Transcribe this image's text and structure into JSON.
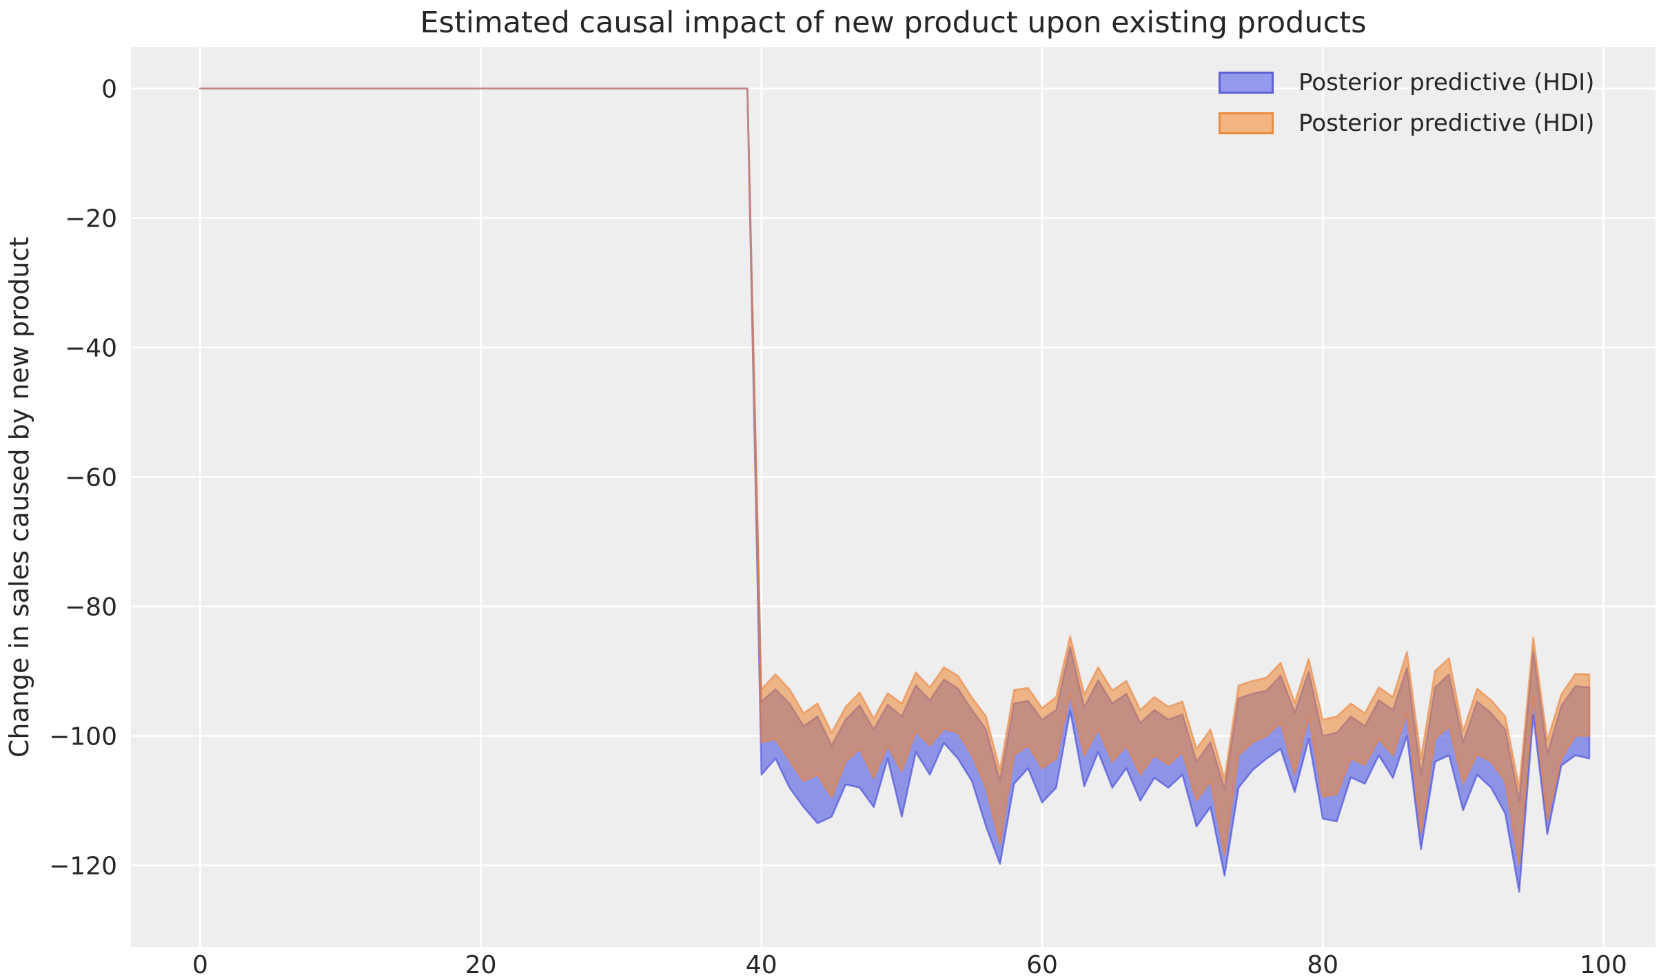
{
  "title": "Estimated causal impact of new product upon existing products",
  "ylabel": "Change in sales caused by new product",
  "xlabel": "",
  "legend": {
    "position": "upper right",
    "items": [
      {
        "label": "Posterior predictive (HDI)",
        "fill": "#959bec",
        "edge": "#5c61d8"
      },
      {
        "label": "Posterior predictive (HDI)",
        "fill": "#f4b583",
        "edge": "#e88d40"
      }
    ]
  },
  "colors": {
    "figure_background": "#ffffff",
    "axes_background": "#eeeeee",
    "grid": "#ffffff",
    "text": "#262626",
    "pre_period_line": "#c0817e"
  },
  "chart_data": {
    "type": "area",
    "title": "Estimated causal impact of new product upon existing products",
    "xlabel": "",
    "ylabel": "Change in sales caused by new product",
    "xticks": [
      0,
      20,
      40,
      60,
      80,
      100
    ],
    "yticks": [
      0,
      -20,
      -40,
      -60,
      -80,
      -100,
      -120
    ],
    "xlim": [
      -4.95,
      103.7
    ],
    "ylim": [
      6.4,
      -132.6
    ],
    "grid": true,
    "legend_position": "upper right",
    "pre_period": {
      "x_start": 0,
      "x_end": 39,
      "value": 0
    },
    "change_point_x": 40,
    "x": [
      0,
      1,
      2,
      3,
      4,
      5,
      6,
      7,
      8,
      9,
      10,
      11,
      12,
      13,
      14,
      15,
      16,
      17,
      18,
      19,
      20,
      21,
      22,
      23,
      24,
      25,
      26,
      27,
      28,
      29,
      30,
      31,
      32,
      33,
      34,
      35,
      36,
      37,
      38,
      39,
      40,
      41,
      42,
      43,
      44,
      45,
      46,
      47,
      48,
      49,
      50,
      51,
      52,
      53,
      54,
      55,
      56,
      57,
      58,
      59,
      60,
      61,
      62,
      63,
      64,
      65,
      66,
      67,
      68,
      69,
      70,
      71,
      72,
      73,
      74,
      75,
      76,
      77,
      78,
      79,
      80,
      81,
      82,
      83,
      84,
      85,
      86,
      87,
      88,
      89,
      90,
      91,
      92,
      93,
      94,
      95,
      96,
      97,
      98,
      99
    ],
    "series": [
      {
        "name": "Posterior predictive (HDI)",
        "band": "blue",
        "fill_rgba": "rgba(72,82,222,0.58)",
        "edge_rgba": "rgba(60,65,215,0.6)",
        "upper": [
          0,
          0,
          0,
          0,
          0,
          0,
          0,
          0,
          0,
          0,
          0,
          0,
          0,
          0,
          0,
          0,
          0,
          0,
          0,
          0,
          0,
          0,
          0,
          0,
          0,
          0,
          0,
          0,
          0,
          0,
          0,
          0,
          0,
          0,
          0,
          0,
          0,
          0,
          0,
          0,
          -94.7,
          -92.8,
          -95.0,
          -98.5,
          -97.0,
          -101.5,
          -97.5,
          -95.3,
          -99.0,
          -95.2,
          -97.0,
          -92.2,
          -94.5,
          -91.3,
          -92.7,
          -96.0,
          -99.0,
          -107.0,
          -95.0,
          -94.6,
          -97.5,
          -96.0,
          -86.2,
          -95.6,
          -91.4,
          -95.0,
          -93.5,
          -98.0,
          -96.0,
          -97.5,
          -96.7,
          -104.0,
          -101.0,
          -108.2,
          -94.2,
          -93.5,
          -93.0,
          -90.7,
          -96.4,
          -90.1,
          -100.0,
          -99.5,
          -97.0,
          -98.5,
          -94.5,
          -96.0,
          -89.5,
          -106.0,
          -92.5,
          -90.5,
          -101.0,
          -94.7,
          -96.5,
          -99.0,
          -110.0,
          -86.9,
          -102.8,
          -95.4,
          -92.3,
          -92.5
        ],
        "lower": [
          0,
          0,
          0,
          0,
          0,
          0,
          0,
          0,
          0,
          0,
          0,
          0,
          0,
          0,
          0,
          0,
          0,
          0,
          0,
          0,
          0,
          0,
          0,
          0,
          0,
          0,
          0,
          0,
          0,
          0,
          0,
          0,
          0,
          0,
          0,
          0,
          0,
          0,
          0,
          0,
          -106.0,
          -103.5,
          -108.0,
          -111.0,
          -113.5,
          -112.5,
          -107.5,
          -108.0,
          -111.0,
          -103.5,
          -112.5,
          -102.5,
          -106.0,
          -101.1,
          -103.5,
          -107.0,
          -114.0,
          -119.8,
          -107.4,
          -105.0,
          -110.3,
          -108.0,
          -96.1,
          -107.8,
          -102.5,
          -108.0,
          -105.0,
          -110.0,
          -106.5,
          -108.0,
          -106.0,
          -114.0,
          -111.0,
          -121.6,
          -108.0,
          -105.3,
          -103.5,
          -102.0,
          -108.7,
          -100.5,
          -112.8,
          -113.2,
          -106.4,
          -107.4,
          -103.0,
          -106.5,
          -100.0,
          -117.5,
          -104.0,
          -103.0,
          -111.5,
          -106.0,
          -108.0,
          -112.0,
          -124.1,
          -96.8,
          -115.2,
          -104.6,
          -103.0,
          -103.5
        ]
      },
      {
        "name": "Posterior predictive (HDI)",
        "band": "orange",
        "fill_rgba": "rgba(236,138,58,0.58)",
        "edge_rgba": "rgba(233,130,60,0.6)",
        "upper": [
          0,
          0,
          0,
          0,
          0,
          0,
          0,
          0,
          0,
          0,
          0,
          0,
          0,
          0,
          0,
          0,
          0,
          0,
          0,
          0,
          0,
          0,
          0,
          0,
          0,
          0,
          0,
          0,
          0,
          0,
          0,
          0,
          0,
          0,
          0,
          0,
          0,
          0,
          0,
          0,
          -92.8,
          -90.5,
          -92.8,
          -96.5,
          -95.0,
          -99.5,
          -95.5,
          -93.3,
          -97.3,
          -93.4,
          -95.0,
          -90.2,
          -92.5,
          -89.4,
          -90.7,
          -94.1,
          -97.0,
          -105.3,
          -92.9,
          -92.6,
          -95.7,
          -94.0,
          -84.6,
          -93.6,
          -89.4,
          -93.0,
          -91.5,
          -96.0,
          -94.0,
          -95.5,
          -94.7,
          -102.0,
          -99.0,
          -106.6,
          -92.2,
          -91.5,
          -91.0,
          -88.7,
          -94.9,
          -88.1,
          -97.5,
          -97.0,
          -95.0,
          -96.5,
          -92.5,
          -94.0,
          -87.0,
          -103.5,
          -90.0,
          -88.0,
          -99.3,
          -92.7,
          -94.5,
          -97.0,
          -108.0,
          -84.8,
          -100.7,
          -93.6,
          -90.4,
          -90.5
        ],
        "lower": [
          0,
          0,
          0,
          0,
          0,
          0,
          0,
          0,
          0,
          0,
          0,
          0,
          0,
          0,
          0,
          0,
          0,
          0,
          0,
          0,
          0,
          0,
          0,
          0,
          0,
          0,
          0,
          0,
          0,
          0,
          0,
          0,
          0,
          0,
          0,
          0,
          0,
          0,
          0,
          0,
          -101.0,
          -100.5,
          -103.8,
          -107.0,
          -106.0,
          -109.5,
          -104.0,
          -102.0,
          -106.5,
          -101.5,
          -105.5,
          -99.3,
          -101.5,
          -98.9,
          -99.5,
          -103.0,
          -108.0,
          -116.7,
          -103.0,
          -101.5,
          -105.0,
          -103.5,
          -93.6,
          -103.0,
          -99.0,
          -104.0,
          -101.5,
          -106.0,
          -103.0,
          -104.5,
          -102.5,
          -110.0,
          -107.0,
          -118.4,
          -103.0,
          -101.0,
          -100.0,
          -98.0,
          -106.0,
          -97.0,
          -109.4,
          -109.0,
          -103.5,
          -104.5,
          -100.5,
          -103.0,
          -96.5,
          -115.0,
          -100.5,
          -98.5,
          -107.4,
          -102.8,
          -104.0,
          -107.0,
          -120.0,
          -93.9,
          -113.1,
          -103.5,
          -100.0,
          -100.0
        ]
      }
    ]
  }
}
